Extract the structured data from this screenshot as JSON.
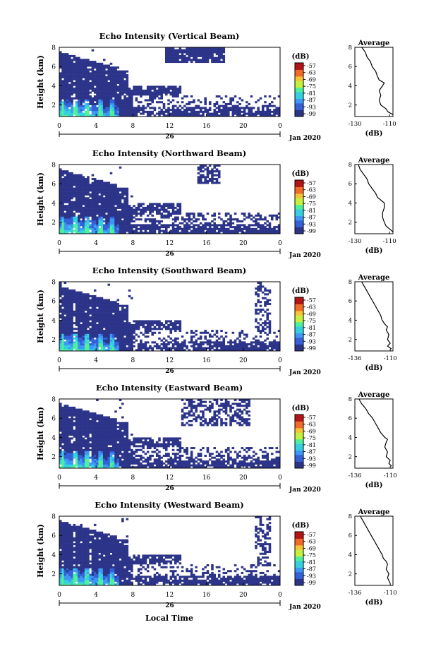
{
  "figure": {
    "date_label": "Jan 2020",
    "day_label": "26",
    "x_axis_label": "Local Time",
    "colorbar_unit": "(dB)",
    "colorbar_ticks": [
      "-57",
      "-63",
      "-69",
      "-75",
      "-81",
      "-87",
      "-93",
      "-99"
    ],
    "profile_title": "Average",
    "profile_xlabel": "(dB)"
  },
  "chart_data": [
    {
      "type": "heatmap",
      "title": "Echo Intensity (Vertical Beam)",
      "ylabel": "Height (km)",
      "xlim": [
        0,
        24
      ],
      "ylim": [
        0.8,
        8
      ],
      "xticks": [
        "0",
        "4",
        "8",
        "12",
        "16",
        "20",
        "0"
      ],
      "yticks": [
        "2",
        "4",
        "6",
        "8"
      ],
      "colorbar_range": [
        -99,
        -57
      ],
      "colors": [
        "#2c3489",
        "#3460d8",
        "#3d98f5",
        "#34cfe0",
        "#4ef19a",
        "#c4f23c",
        "#f6c334",
        "#f26a25",
        "#b51414"
      ],
      "profile": {
        "type": "line",
        "xlim": [
          -130,
          -108
        ],
        "xticks": [
          "-130",
          "-110"
        ],
        "yticks": [
          "2",
          "4",
          "6",
          "8"
        ],
        "height_km": [
          1.0,
          1.3,
          1.6,
          2.0,
          2.5,
          3.0,
          3.5,
          4.0,
          4.3,
          4.6,
          5.0,
          5.5,
          6.0,
          6.5,
          7.0,
          7.5,
          8.0
        ],
        "intensity_db": [
          -108,
          -111,
          -112,
          -115,
          -116,
          -115,
          -116,
          -114,
          -113,
          -116,
          -117,
          -118,
          -120,
          -121,
          -123,
          -124,
          -126
        ]
      }
    },
    {
      "type": "heatmap",
      "title": "Echo Intensity (Northward Beam)",
      "ylabel": "Height (km)",
      "xlim": [
        0,
        24
      ],
      "ylim": [
        0.8,
        8
      ],
      "xticks": [
        "0",
        "4",
        "8",
        "12",
        "16",
        "20",
        "0"
      ],
      "yticks": [
        "2",
        "4",
        "6",
        "8"
      ],
      "colorbar_range": [
        -99,
        -57
      ],
      "colors": [
        "#2c3489",
        "#3460d8",
        "#3d98f5",
        "#34cfe0",
        "#4ef19a",
        "#c4f23c",
        "#f6c334",
        "#f26a25",
        "#b51414"
      ],
      "profile": {
        "type": "line",
        "xlim": [
          -130,
          -108
        ],
        "xticks": [
          "-130",
          "-110"
        ],
        "yticks": [
          "2",
          "4",
          "6",
          "8"
        ],
        "height_km": [
          1.0,
          1.3,
          1.6,
          2.0,
          2.5,
          3.0,
          3.5,
          4.0,
          4.3,
          4.6,
          5.0,
          5.5,
          6.0,
          6.5,
          7.0,
          7.5,
          8.0
        ],
        "intensity_db": [
          -108,
          -110,
          -112,
          -113,
          -114,
          -114,
          -113,
          -113,
          -115,
          -117,
          -118,
          -120,
          -122,
          -123,
          -125,
          -127,
          -128
        ]
      }
    },
    {
      "type": "heatmap",
      "title": "Echo Intensity (Southward Beam)",
      "ylabel": "Height (km)",
      "xlim": [
        0,
        24
      ],
      "ylim": [
        0.8,
        8
      ],
      "xticks": [
        "0",
        "4",
        "8",
        "12",
        "16",
        "20",
        "0"
      ],
      "yticks": [
        "2",
        "4",
        "6",
        "8"
      ],
      "colorbar_range": [
        -99,
        -57
      ],
      "colors": [
        "#2c3489",
        "#3460d8",
        "#3d98f5",
        "#34cfe0",
        "#4ef19a",
        "#c4f23c",
        "#f6c334",
        "#f26a25",
        "#b51414"
      ],
      "profile": {
        "type": "line",
        "xlim": [
          -136,
          -108
        ],
        "xticks": [
          "-136",
          "-110"
        ],
        "yticks": [
          "2",
          "4",
          "6",
          "8"
        ],
        "height_km": [
          1.0,
          1.3,
          1.6,
          2.0,
          2.5,
          3.0,
          3.3,
          3.6,
          4.0,
          4.5,
          5.0,
          5.5,
          6.0,
          6.5,
          7.0,
          7.5,
          8.0
        ],
        "intensity_db": [
          -109,
          -112,
          -110,
          -112,
          -111,
          -113,
          -112,
          -114,
          -116,
          -117,
          -119,
          -121,
          -123,
          -125,
          -127,
          -129,
          -131
        ]
      }
    },
    {
      "type": "heatmap",
      "title": "Echo Intensity (Eastward Beam)",
      "ylabel": "Height (km)",
      "xlim": [
        0,
        24
      ],
      "ylim": [
        0.8,
        8
      ],
      "xticks": [
        "0",
        "4",
        "8",
        "12",
        "16",
        "20",
        "0"
      ],
      "yticks": [
        "2",
        "4",
        "6",
        "8"
      ],
      "colorbar_range": [
        -99,
        -57
      ],
      "colors": [
        "#2c3489",
        "#3460d8",
        "#3d98f5",
        "#34cfe0",
        "#4ef19a",
        "#c4f23c",
        "#f6c334",
        "#f26a25",
        "#b51414"
      ],
      "profile": {
        "type": "line",
        "xlim": [
          -136,
          -108
        ],
        "xticks": [
          "-136",
          "-110"
        ],
        "yticks": [
          "2",
          "4",
          "6",
          "8"
        ],
        "height_km": [
          1.0,
          1.3,
          1.6,
          2.0,
          2.5,
          3.0,
          3.5,
          3.8,
          4.0,
          4.5,
          5.0,
          5.5,
          6.0,
          6.5,
          7.0,
          7.5,
          8.0
        ],
        "intensity_db": [
          -109,
          -111,
          -110,
          -113,
          -112,
          -114,
          -113,
          -112,
          -114,
          -117,
          -119,
          -121,
          -123,
          -126,
          -128,
          -131,
          -133
        ]
      }
    },
    {
      "type": "heatmap",
      "title": "Echo Intensity (Westward Beam)",
      "ylabel": "Height (km)",
      "xlim": [
        0,
        24
      ],
      "ylim": [
        0.8,
        8
      ],
      "xticks": [
        "0",
        "4",
        "8",
        "12",
        "16",
        "20",
        "0"
      ],
      "yticks": [
        "2",
        "4",
        "6",
        "8"
      ],
      "colorbar_range": [
        -99,
        -57
      ],
      "colors": [
        "#2c3489",
        "#3460d8",
        "#3d98f5",
        "#34cfe0",
        "#4ef19a",
        "#c4f23c",
        "#f6c334",
        "#f26a25",
        "#b51414"
      ],
      "profile": {
        "type": "line",
        "xlim": [
          -136,
          -108
        ],
        "xticks": [
          "-136",
          "-110"
        ],
        "yticks": [
          "2",
          "4",
          "6",
          "8"
        ],
        "height_km": [
          1.0,
          1.3,
          1.6,
          2.0,
          2.5,
          3.0,
          3.3,
          3.6,
          4.0,
          4.5,
          5.0,
          5.5,
          6.0,
          6.5,
          7.0,
          7.5,
          8.0
        ],
        "intensity_db": [
          -110,
          -111,
          -112,
          -111,
          -113,
          -112,
          -113,
          -115,
          -116,
          -118,
          -120,
          -122,
          -124,
          -126,
          -128,
          -130,
          -132
        ]
      }
    }
  ]
}
